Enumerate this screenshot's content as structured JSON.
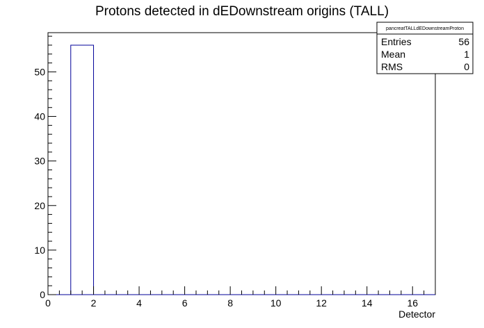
{
  "chart_data": {
    "type": "bar",
    "title": "Protons detected in dEDownstream origins (TALL)",
    "xlabel": "Detector",
    "ylabel": "",
    "xlim": [
      0,
      17
    ],
    "ylim": [
      0,
      58.8
    ],
    "x_ticks": [
      0,
      2,
      4,
      6,
      8,
      10,
      12,
      14,
      16
    ],
    "y_ticks": [
      0,
      10,
      20,
      30,
      40,
      50
    ],
    "bins": [
      {
        "low": 1,
        "high": 2,
        "value": 56
      }
    ],
    "line_color": "#000099",
    "grid": false,
    "stats_box": {
      "placement": "top-right",
      "name": "pancreatTALLdEDownstreamProton",
      "rows": [
        {
          "label": "Entries",
          "value": "56"
        },
        {
          "label": "Mean",
          "value": "1"
        },
        {
          "label": "RMS",
          "value": "0"
        }
      ]
    }
  }
}
